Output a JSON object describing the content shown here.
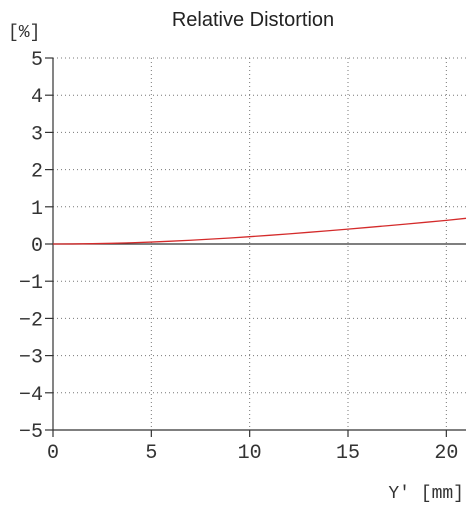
{
  "chart_data": {
    "type": "line",
    "title": "Relative Distortion",
    "ylabel": "[%]",
    "xlabel": "Y' [mm]",
    "xlim": [
      0,
      21
    ],
    "ylim": [
      -5,
      5
    ],
    "x_ticks": [
      0,
      5,
      10,
      15,
      20
    ],
    "y_ticks": [
      5,
      4,
      3,
      2,
      1,
      0,
      -1,
      -2,
      -3,
      -4,
      -5
    ],
    "y_tick_labels": [
      "5",
      "4",
      "3",
      "2",
      "1",
      "0",
      "−1",
      "−2",
      "−3",
      "−4",
      "−5"
    ],
    "grid": true,
    "series": [
      {
        "color": "#d42b2b",
        "x": [
          0,
          1,
          2,
          3,
          4,
          5,
          6,
          7,
          8,
          9,
          10,
          11,
          12,
          13,
          14,
          15,
          16,
          17,
          18,
          19,
          20,
          21
        ],
        "y": [
          0,
          0.002,
          0.008,
          0.018,
          0.033,
          0.052,
          0.075,
          0.101,
          0.13,
          0.162,
          0.197,
          0.234,
          0.273,
          0.314,
          0.356,
          0.4,
          0.445,
          0.491,
          0.538,
          0.586,
          0.635,
          0.69
        ]
      }
    ]
  }
}
